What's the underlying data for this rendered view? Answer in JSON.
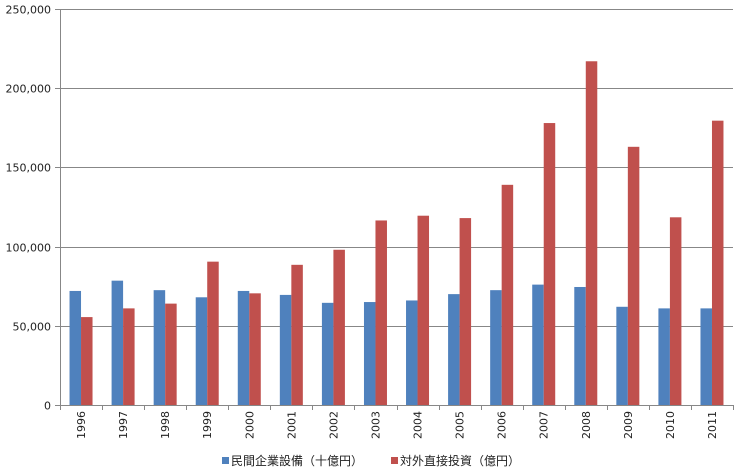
{
  "chart_data": {
    "type": "bar",
    "categories": [
      "1996",
      "1997",
      "1998",
      "1999",
      "2000",
      "2001",
      "2002",
      "2003",
      "2004",
      "2005",
      "2006",
      "2007",
      "2008",
      "2009",
      "2010",
      "2011"
    ],
    "series": [
      {
        "name": "民間企業設備（十億円）",
        "color": "#4f81bd",
        "values": [
          72000,
          78500,
          72500,
          68000,
          72000,
          69500,
          64500,
          65000,
          66000,
          70000,
          72500,
          76000,
          74500,
          62000,
          61000,
          61000
        ]
      },
      {
        "name": "対外直接投資（億円）",
        "color": "#c0504d",
        "values": [
          55500,
          61000,
          64000,
          90500,
          70500,
          88500,
          98000,
          116500,
          119500,
          118000,
          139000,
          178000,
          217000,
          163000,
          118500,
          179500
        ]
      }
    ],
    "ylim": [
      0,
      250000
    ],
    "yticks": [
      0,
      50000,
      100000,
      150000,
      200000,
      250000
    ],
    "ytick_labels": [
      "0",
      "50,000",
      "100,000",
      "150,000",
      "200,000",
      "250,000"
    ],
    "grid": true,
    "legend_position": "bottom",
    "title": "",
    "xlabel": "",
    "ylabel": ""
  }
}
